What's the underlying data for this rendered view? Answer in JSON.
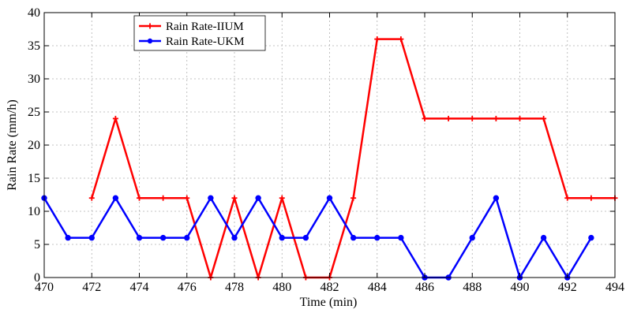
{
  "chart_data": {
    "type": "line",
    "title": "",
    "xlabel": "Time (min)",
    "ylabel": "Rain Rate (mm/h)",
    "xlim": [
      470,
      494
    ],
    "ylim": [
      0,
      40
    ],
    "x_ticks": [
      470,
      472,
      474,
      476,
      478,
      480,
      482,
      484,
      486,
      488,
      490,
      492,
      494
    ],
    "y_ticks": [
      0,
      5,
      10,
      15,
      20,
      25,
      30,
      35,
      40
    ],
    "grid": true,
    "legend_position": "top-left",
    "series": [
      {
        "name": "Rain Rate-IIUM",
        "color": "#ff0000",
        "marker": "plus",
        "x": [
          472,
          473,
          474,
          475,
          476,
          477,
          478,
          479,
          480,
          481,
          482,
          483,
          484,
          485,
          486,
          487,
          488,
          489,
          490,
          491,
          492,
          493,
          494
        ],
        "y": [
          12,
          24,
          12,
          12,
          12,
          0,
          12,
          0,
          12,
          0,
          0,
          12,
          36,
          36,
          24,
          24,
          24,
          24,
          24,
          24,
          12,
          12,
          12
        ]
      },
      {
        "name": "Rain Rate-UKM",
        "color": "#0000ff",
        "marker": "dot",
        "x": [
          470,
          471,
          472,
          473,
          474,
          475,
          476,
          477,
          478,
          479,
          480,
          481,
          482,
          483,
          484,
          485,
          486,
          487,
          488,
          489,
          490,
          491,
          492,
          493
        ],
        "y": [
          12,
          6,
          6,
          12,
          6,
          6,
          6,
          12,
          6,
          12,
          6,
          6,
          12,
          6,
          6,
          6,
          0,
          0,
          6,
          12,
          0,
          6,
          0,
          6
        ]
      }
    ]
  }
}
